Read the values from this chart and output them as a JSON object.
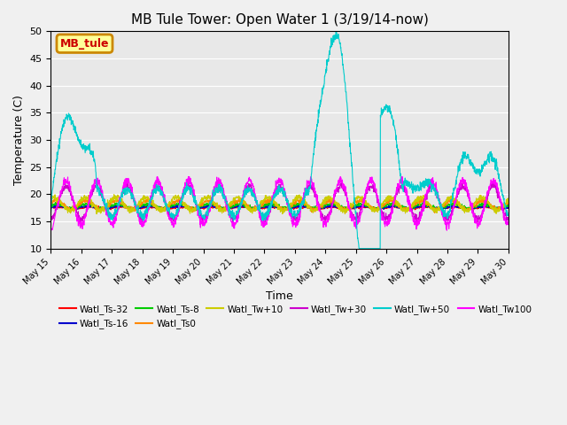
{
  "title": "MB Tule Tower: Open Water 1 (3/19/14-now)",
  "xlabel": "Time",
  "ylabel": "Temperature (C)",
  "ylim": [
    10,
    50
  ],
  "yticks": [
    10,
    15,
    20,
    25,
    30,
    35,
    40,
    45,
    50
  ],
  "bg_color": "#e8e8e8",
  "fig_color": "#f0f0f0",
  "legend_label": "MB_tule",
  "legend_box_facecolor": "#ffff99",
  "legend_box_edgecolor": "#cc8800",
  "legend_text_color": "#cc0000",
  "series": [
    {
      "name": "Watl_Ts-32",
      "color": "#ff0000"
    },
    {
      "name": "Watl_Ts-16",
      "color": "#0000cc"
    },
    {
      "name": "Watl_Ts-8",
      "color": "#00cc00"
    },
    {
      "name": "Watl_Ts0",
      "color": "#ff8800"
    },
    {
      "name": "Watl_Tw+10",
      "color": "#cccc00"
    },
    {
      "name": "Watl_Tw+30",
      "color": "#cc00cc"
    },
    {
      "name": "Watl_Tw+50",
      "color": "#00cccc"
    },
    {
      "name": "Watl_Tw100",
      "color": "#ff00ff"
    }
  ],
  "n_days": 15,
  "n_points": 2000,
  "start_day": 15,
  "xtick_days": [
    15,
    16,
    17,
    18,
    19,
    20,
    21,
    22,
    23,
    24,
    25,
    26,
    27,
    28,
    29,
    30
  ]
}
